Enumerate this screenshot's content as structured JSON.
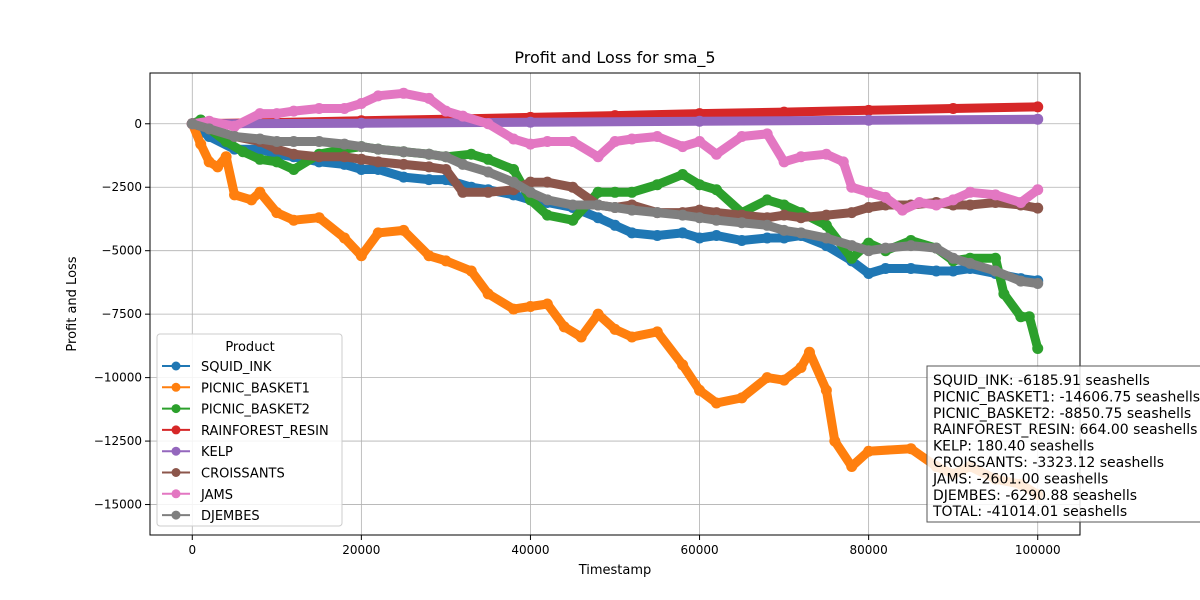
{
  "chart_data": {
    "type": "line",
    "title": "Profit and Loss for sma_5",
    "xlabel": "Timestamp",
    "ylabel": "Profit and Loss",
    "xlim": [
      -5000,
      105000
    ],
    "ylim": [
      -16200,
      2000
    ],
    "xticks": [
      0,
      20000,
      40000,
      60000,
      80000,
      100000
    ],
    "yticks": [
      0,
      -2500,
      -5000,
      -7500,
      -10000,
      -12500,
      -15000
    ],
    "grid": true,
    "legend": {
      "title": "Product",
      "placement": "lower-left"
    },
    "series": [
      {
        "name": "SQUID_INK",
        "color": "#1f77b4",
        "x": [
          0,
          2000,
          5000,
          8000,
          10000,
          12000,
          15000,
          18000,
          20000,
          22000,
          25000,
          28000,
          30000,
          33000,
          35000,
          38000,
          40000,
          42000,
          45000,
          48000,
          50000,
          52000,
          55000,
          58000,
          60000,
          62000,
          65000,
          68000,
          70000,
          72000,
          75000,
          78000,
          80000,
          82000,
          85000,
          88000,
          90000,
          92000,
          95000,
          98000,
          100000
        ],
        "y": [
          0,
          -500,
          -1000,
          -1000,
          -1200,
          -1300,
          -1500,
          -1600,
          -1800,
          -1800,
          -2100,
          -2200,
          -2200,
          -2500,
          -2600,
          -2800,
          -3000,
          -3100,
          -3300,
          -3700,
          -4000,
          -4300,
          -4400,
          -4300,
          -4500,
          -4400,
          -4600,
          -4500,
          -4500,
          -4400,
          -4800,
          -5400,
          -5900,
          -5700,
          -5700,
          -5800,
          -5800,
          -5700,
          -5900,
          -6100,
          -6186
        ]
      },
      {
        "name": "PICNIC_BASKET1",
        "color": "#ff7f0e",
        "x": [
          0,
          1000,
          2000,
          3000,
          4000,
          5000,
          7000,
          8000,
          10000,
          12000,
          15000,
          18000,
          20000,
          22000,
          25000,
          28000,
          30000,
          33000,
          35000,
          38000,
          40000,
          42000,
          44000,
          46000,
          48000,
          50000,
          52000,
          55000,
          58000,
          60000,
          62000,
          65000,
          68000,
          70000,
          72000,
          73000,
          75000,
          76000,
          78000,
          80000,
          85000,
          88000,
          90000,
          92000,
          95000,
          98000,
          100000
        ],
        "y": [
          0,
          -800,
          -1500,
          -1700,
          -1300,
          -2800,
          -3000,
          -2700,
          -3500,
          -3800,
          -3700,
          -4500,
          -5200,
          -4300,
          -4200,
          -5200,
          -5400,
          -5800,
          -6700,
          -7300,
          -7200,
          -7100,
          -8000,
          -8400,
          -7500,
          -8100,
          -8400,
          -8200,
          -9500,
          -10500,
          -11000,
          -10800,
          -10000,
          -10100,
          -9600,
          -9000,
          -10500,
          -12500,
          -13500,
          -12900,
          -12800,
          -13500,
          -13800,
          -13500,
          -14000,
          -14200,
          -14607
        ]
      },
      {
        "name": "PICNIC_BASKET2",
        "color": "#2ca02c",
        "x": [
          0,
          1000,
          2000,
          4000,
          6000,
          8000,
          10000,
          12000,
          15000,
          18000,
          20000,
          22000,
          25000,
          28000,
          30000,
          33000,
          35000,
          38000,
          40000,
          42000,
          45000,
          48000,
          50000,
          52000,
          55000,
          58000,
          60000,
          62000,
          65000,
          68000,
          70000,
          72000,
          75000,
          78000,
          80000,
          82000,
          85000,
          88000,
          90000,
          92000,
          95000,
          96000,
          98000,
          99000,
          100000
        ],
        "y": [
          0,
          150,
          -200,
          -700,
          -1100,
          -1400,
          -1500,
          -1800,
          -1200,
          -1000,
          -900,
          -1000,
          -1100,
          -1200,
          -1300,
          -1200,
          -1400,
          -1800,
          -3000,
          -3600,
          -3800,
          -2700,
          -2700,
          -2700,
          -2400,
          -2000,
          -2400,
          -2600,
          -3500,
          -3000,
          -3200,
          -3500,
          -4000,
          -5300,
          -4700,
          -5000,
          -4600,
          -4900,
          -5400,
          -5300,
          -5300,
          -6700,
          -7600,
          -7600,
          -8851
        ]
      },
      {
        "name": "RAINFOREST_RESIN",
        "color": "#d62728",
        "x": [
          0,
          10000,
          20000,
          30000,
          40000,
          50000,
          60000,
          70000,
          80000,
          90000,
          100000
        ],
        "y": [
          0,
          50,
          120,
          180,
          250,
          320,
          400,
          460,
          530,
          600,
          664
        ]
      },
      {
        "name": "KELP",
        "color": "#9467bd",
        "x": [
          0,
          20000,
          40000,
          60000,
          80000,
          100000
        ],
        "y": [
          0,
          20,
          60,
          100,
          140,
          180
        ]
      },
      {
        "name": "CROISSANTS",
        "color": "#8c564b",
        "x": [
          0,
          2000,
          5000,
          8000,
          10000,
          12000,
          15000,
          18000,
          20000,
          22000,
          25000,
          28000,
          30000,
          32000,
          35000,
          38000,
          40000,
          42000,
          45000,
          48000,
          50000,
          52000,
          55000,
          58000,
          60000,
          62000,
          65000,
          68000,
          70000,
          72000,
          75000,
          78000,
          80000,
          82000,
          85000,
          88000,
          90000,
          92000,
          95000,
          98000,
          100000
        ],
        "y": [
          0,
          -200,
          -500,
          -700,
          -1000,
          -1200,
          -1300,
          -1300,
          -1400,
          -1500,
          -1600,
          -1700,
          -1800,
          -2700,
          -2700,
          -2600,
          -2300,
          -2300,
          -2500,
          -3200,
          -3300,
          -3200,
          -3500,
          -3500,
          -3400,
          -3500,
          -3600,
          -3700,
          -3600,
          -3700,
          -3600,
          -3500,
          -3300,
          -3200,
          -3200,
          -3100,
          -3200,
          -3200,
          -3100,
          -3200,
          -3323
        ]
      },
      {
        "name": "JAMS",
        "color": "#e377c2",
        "x": [
          0,
          2000,
          5000,
          8000,
          10000,
          12000,
          15000,
          18000,
          20000,
          22000,
          25000,
          28000,
          30000,
          32000,
          35000,
          38000,
          40000,
          42000,
          45000,
          48000,
          50000,
          52000,
          55000,
          58000,
          60000,
          62000,
          65000,
          68000,
          70000,
          72000,
          75000,
          77000,
          78000,
          80000,
          82000,
          84000,
          86000,
          88000,
          90000,
          92000,
          95000,
          98000,
          100000
        ],
        "y": [
          0,
          100,
          -100,
          400,
          400,
          500,
          600,
          600,
          800,
          1100,
          1200,
          1000,
          500,
          300,
          0,
          -600,
          -800,
          -700,
          -700,
          -1300,
          -700,
          -600,
          -500,
          -900,
          -700,
          -1200,
          -500,
          -400,
          -1500,
          -1300,
          -1200,
          -1500,
          -2500,
          -2700,
          -2900,
          -3400,
          -3100,
          -3200,
          -3000,
          -2700,
          -2800,
          -3100,
          -2601
        ]
      },
      {
        "name": "DJEMBES",
        "color": "#7f7f7f",
        "x": [
          0,
          2000,
          5000,
          8000,
          10000,
          12000,
          15000,
          18000,
          20000,
          22000,
          25000,
          28000,
          30000,
          32000,
          35000,
          38000,
          40000,
          42000,
          45000,
          48000,
          50000,
          52000,
          55000,
          58000,
          60000,
          62000,
          65000,
          68000,
          70000,
          72000,
          75000,
          78000,
          80000,
          82000,
          85000,
          88000,
          90000,
          92000,
          95000,
          98000,
          100000
        ],
        "y": [
          0,
          -200,
          -500,
          -600,
          -700,
          -700,
          -700,
          -800,
          -900,
          -1000,
          -1100,
          -1200,
          -1300,
          -1600,
          -1900,
          -2300,
          -2700,
          -3000,
          -3200,
          -3200,
          -3300,
          -3400,
          -3500,
          -3600,
          -3700,
          -3800,
          -3900,
          -4000,
          -4200,
          -4300,
          -4500,
          -4800,
          -5000,
          -4900,
          -4800,
          -4900,
          -5300,
          -5500,
          -5800,
          -6200,
          -6291
        ]
      }
    ],
    "summary": [
      "SQUID_INK: -6185.91 seashells",
      "PICNIC_BASKET1: -14606.75 seashells",
      "PICNIC_BASKET2: -8850.75 seashells",
      "RAINFOREST_RESIN: 664.00 seashells",
      "KELP: 180.40 seashells",
      "CROISSANTS: -3323.12 seashells",
      "JAMS: -2601.00 seashells",
      "DJEMBES: -6290.88 seashells",
      "TOTAL: -41014.01 seashells"
    ]
  }
}
